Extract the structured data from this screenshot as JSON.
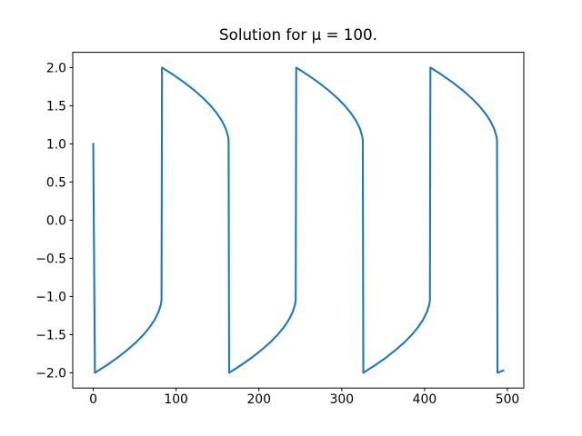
{
  "chart_data": {
    "type": "line",
    "title": "Solution for μ = 100.",
    "x": [
      0,
      2,
      16.4,
      29.5,
      41.2,
      51.7,
      60.7,
      68.3,
      74.4,
      78.9,
      81.7,
      82.4,
      83,
      97.4,
      110.5,
      122.2,
      132.7,
      141.7,
      149.3,
      155.4,
      159.9,
      162.7,
      163.4,
      164,
      178.4,
      191.5,
      203.2,
      213.7,
      222.7,
      230.3,
      236.4,
      240.9,
      243.7,
      244.4,
      245,
      259.4,
      272.5,
      284.2,
      294.7,
      303.7,
      311.3,
      317.4,
      321.9,
      324.7,
      325.4,
      326,
      340.4,
      353.5,
      365.2,
      375.7,
      384.7,
      392.3,
      398.4,
      402.9,
      405.7,
      406.4,
      407,
      421.4,
      434.5,
      446.2,
      456.7,
      465.7,
      473.3,
      479.4,
      483.9,
      486.7,
      487.4,
      488,
      495
    ],
    "series": [
      {
        "color": "#1f77b4",
        "values": [
          1.0,
          -2.0,
          -1.9,
          -1.8,
          -1.7,
          -1.6,
          -1.5,
          -1.4,
          -1.3,
          -1.2,
          -1.1,
          -1.05,
          2.0,
          1.9,
          1.8,
          1.7,
          1.6,
          1.5,
          1.4,
          1.3,
          1.2,
          1.1,
          1.05,
          -2.0,
          -1.9,
          -1.8,
          -1.7,
          -1.6,
          -1.5,
          -1.4,
          -1.3,
          -1.2,
          -1.1,
          -1.05,
          2.0,
          1.9,
          1.8,
          1.7,
          1.6,
          1.5,
          1.4,
          1.3,
          1.2,
          1.1,
          1.05,
          -2.0,
          -1.9,
          -1.8,
          -1.7,
          -1.6,
          -1.5,
          -1.4,
          -1.3,
          -1.2,
          -1.1,
          -1.05,
          2.0,
          1.9,
          1.8,
          1.7,
          1.6,
          1.5,
          1.4,
          1.3,
          1.2,
          1.1,
          1.05,
          -2.0,
          -1.97
        ]
      }
    ],
    "xlim": [
      -24.75,
      519.75
    ],
    "xticks": [
      0,
      100,
      200,
      300,
      400,
      500
    ],
    "ylim": [
      -2.2,
      2.2
    ],
    "yticks": [
      {
        "value": -2.0,
        "label": "−2.0"
      },
      {
        "value": -1.5,
        "label": "−1.5"
      },
      {
        "value": -1.0,
        "label": "−1.0"
      },
      {
        "value": -0.5,
        "label": "−0.5"
      },
      {
        "value": 0.0,
        "label": "0.0"
      },
      {
        "value": 0.5,
        "label": "0.5"
      },
      {
        "value": 1.0,
        "label": "1.0"
      },
      {
        "value": 1.5,
        "label": "1.5"
      },
      {
        "value": 2.0,
        "label": "2.0"
      }
    ],
    "grid": false
  }
}
